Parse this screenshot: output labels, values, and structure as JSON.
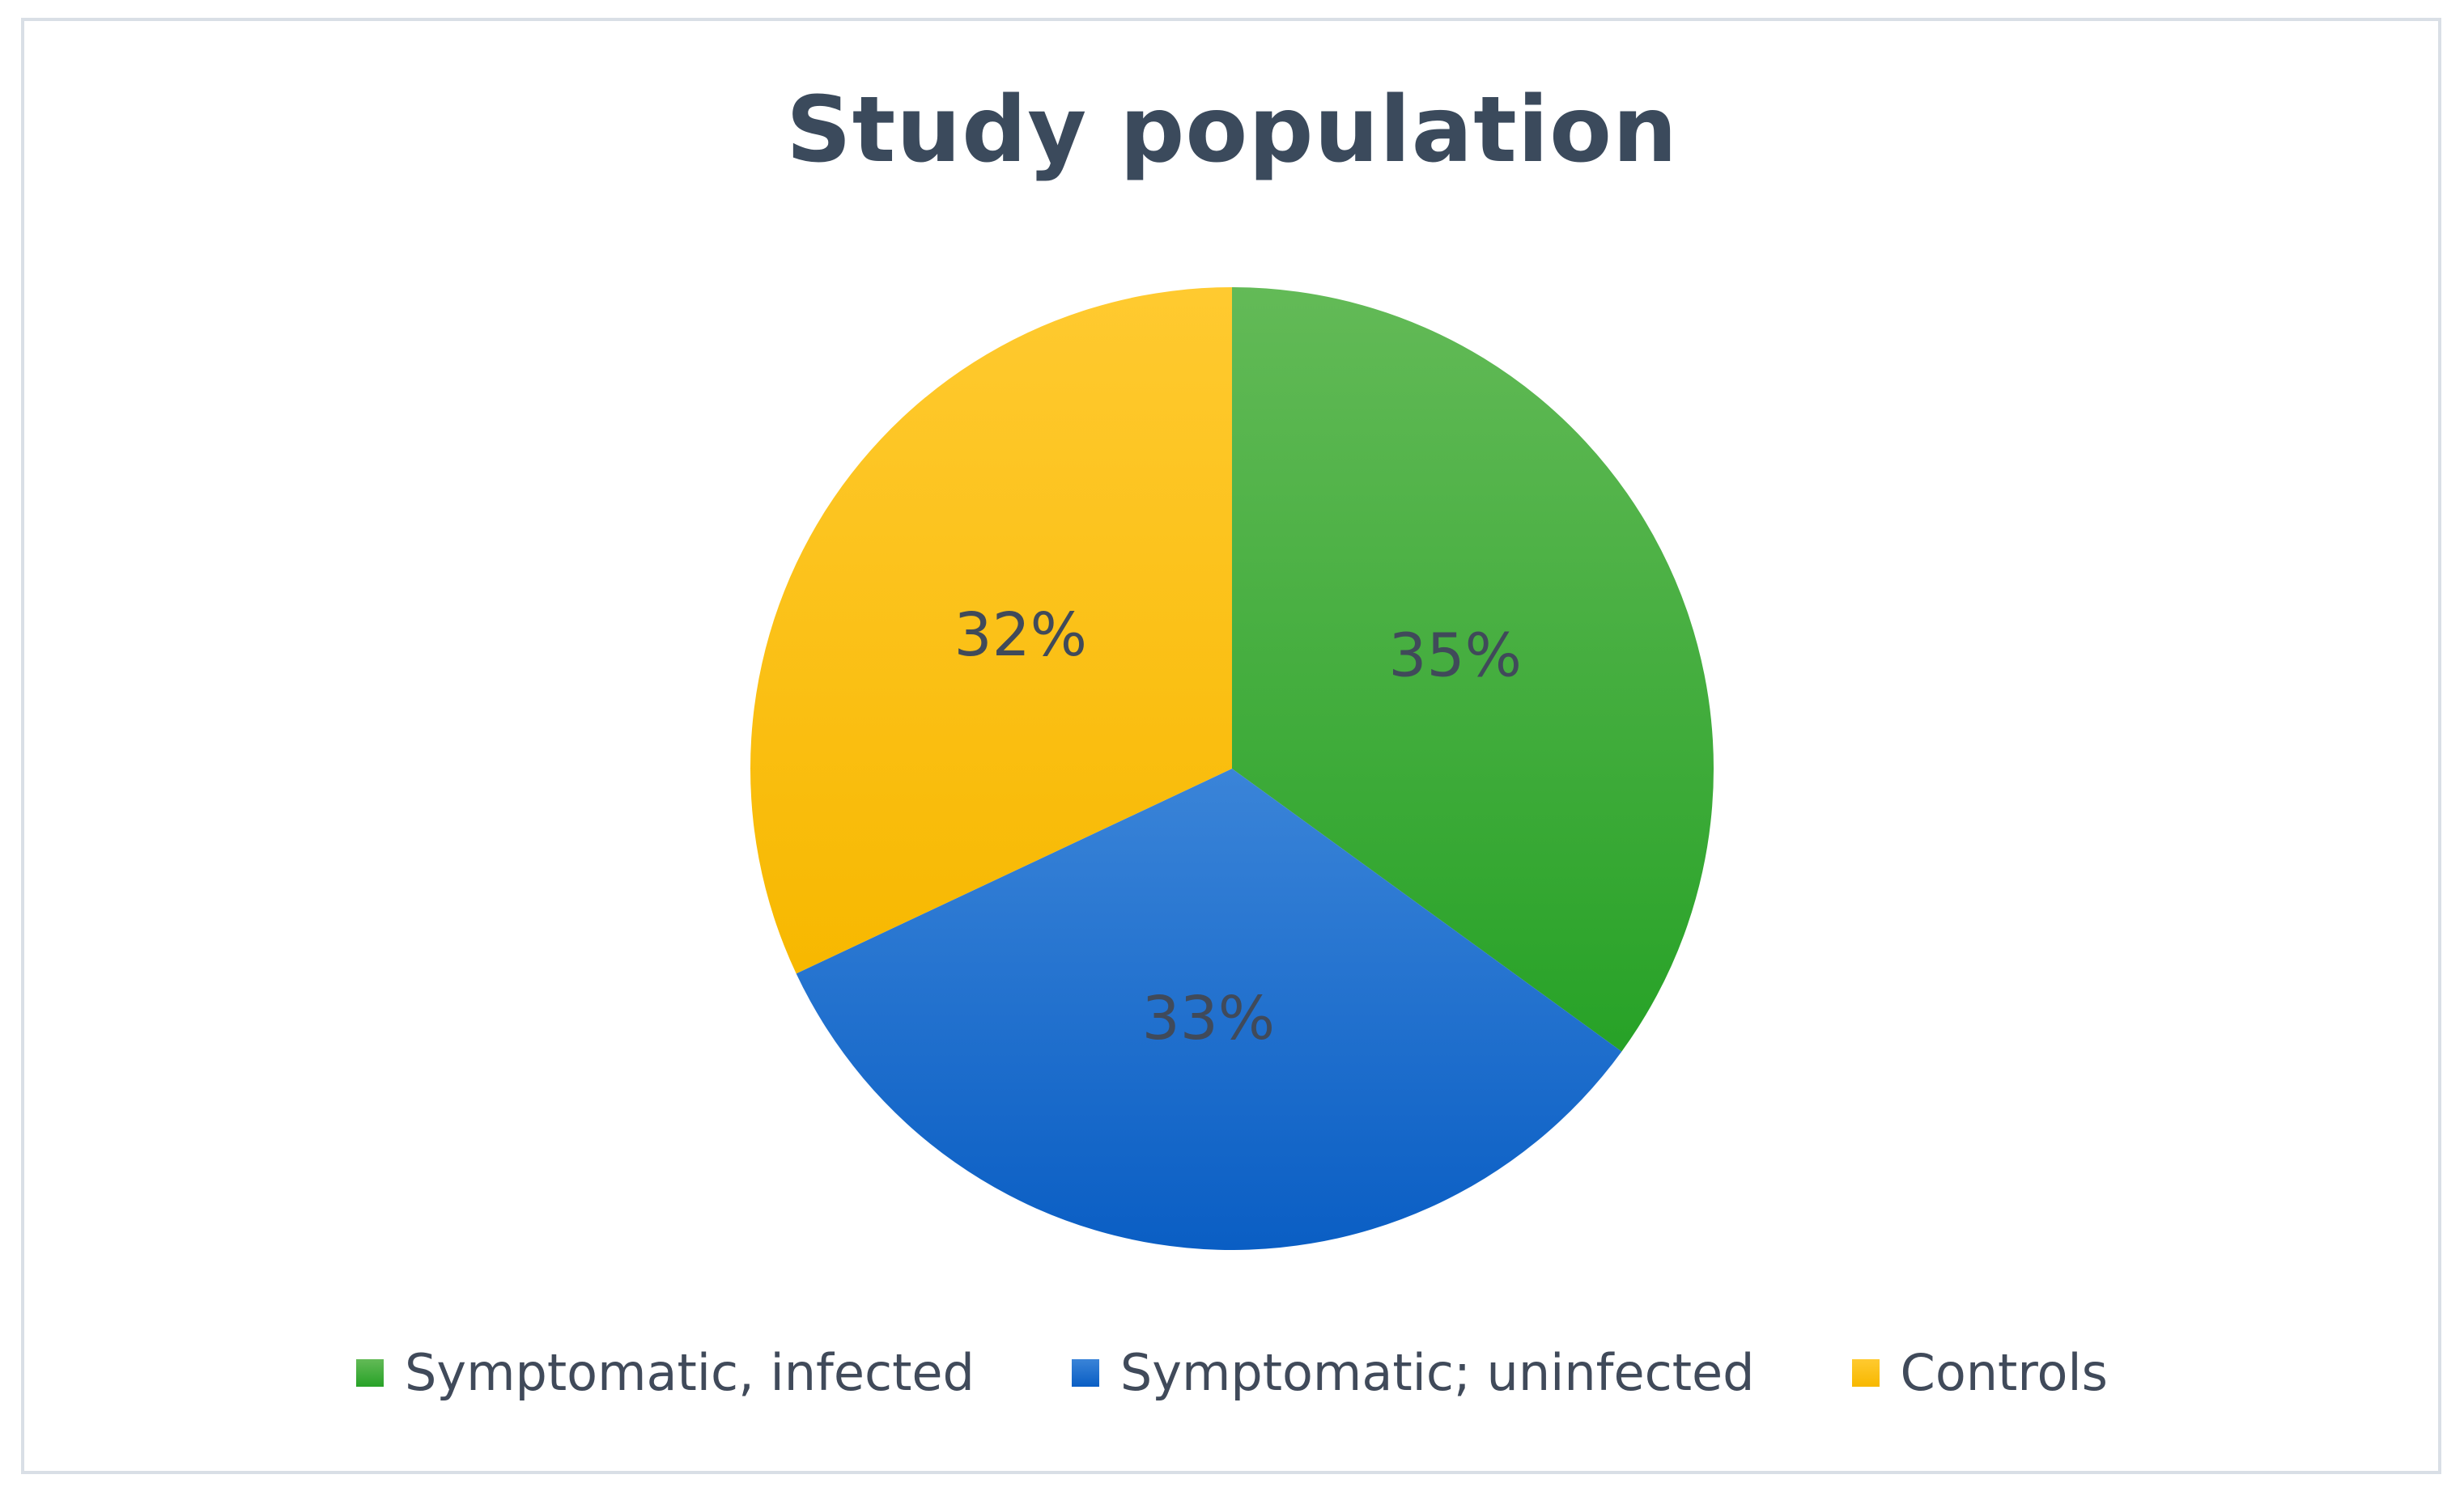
{
  "chart_data": {
    "type": "pie",
    "title": "Study population",
    "categories": [
      "Symptomatic, infected",
      "Symptomatic; uninfected",
      "Controls"
    ],
    "values": [
      35,
      33,
      32
    ],
    "data_labels": [
      "35%",
      "33%",
      "32%"
    ],
    "colors": [
      "#2eaa2e",
      "#1b6fcf",
      "#ffc000"
    ],
    "colors_light": [
      "#63ba57",
      "#3a84d8",
      "#ffca30"
    ],
    "colors_dark": [
      "#27a227",
      "#0a5ec4",
      "#f7b800"
    ],
    "legend_position": "bottom"
  }
}
